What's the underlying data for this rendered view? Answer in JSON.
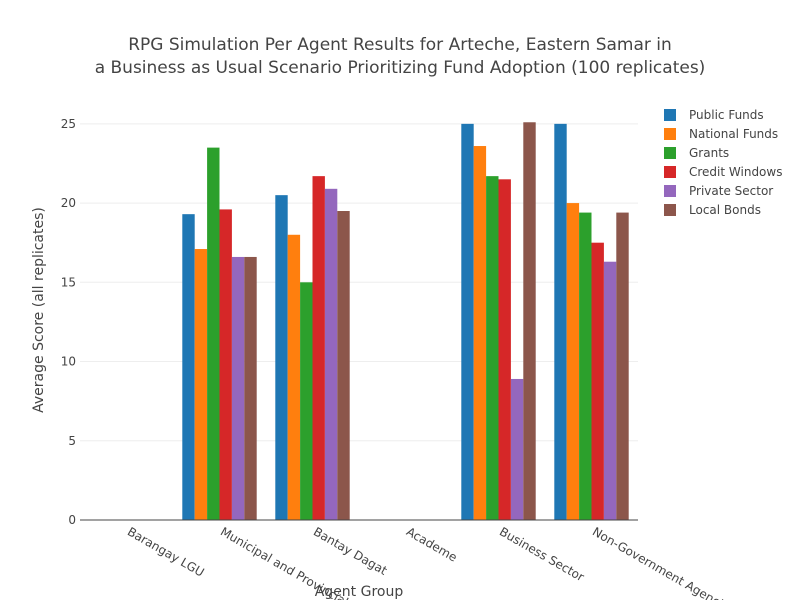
{
  "chart_data": {
    "type": "bar",
    "title_lines": [
      "RPG Simulation Per Agent Results for Arteche, Eastern Samar in",
      "a Business as Usual Scenario Prioritizing Fund Adoption (100 replicates)"
    ],
    "xlabel": "Agent Group",
    "ylabel": "Average Score (all replicates)",
    "ylim": [
      0,
      26
    ],
    "yticks": [
      0,
      5,
      10,
      15,
      20,
      25
    ],
    "ytick_labels": [
      "0",
      "5",
      "10",
      "15",
      "20",
      "25"
    ],
    "grid": true,
    "legend_position": "top-right",
    "categories": [
      "Barangay LGU",
      "Municipal and Provincial LGU",
      "Bantay Dagat",
      "Academe",
      "Business Sector",
      "Non-Government Agencies"
    ],
    "series": [
      {
        "name": "Public Funds",
        "color": "#1f77b4",
        "values": [
          null,
          19.3,
          20.5,
          null,
          25.0,
          25.0
        ]
      },
      {
        "name": "National Funds",
        "color": "#ff7f0e",
        "values": [
          null,
          17.1,
          18.0,
          null,
          23.6,
          20.0
        ]
      },
      {
        "name": "Grants",
        "color": "#2ca02c",
        "values": [
          null,
          23.5,
          15.0,
          null,
          21.7,
          19.4
        ]
      },
      {
        "name": "Credit Windows",
        "color": "#d62728",
        "values": [
          null,
          19.6,
          21.7,
          null,
          21.5,
          17.5
        ]
      },
      {
        "name": "Private Sector",
        "color": "#9467bd",
        "values": [
          null,
          16.6,
          20.9,
          null,
          8.9,
          16.3
        ]
      },
      {
        "name": "Local Bonds",
        "color": "#8c564b",
        "values": [
          null,
          16.6,
          19.5,
          null,
          25.1,
          19.4
        ]
      }
    ]
  }
}
